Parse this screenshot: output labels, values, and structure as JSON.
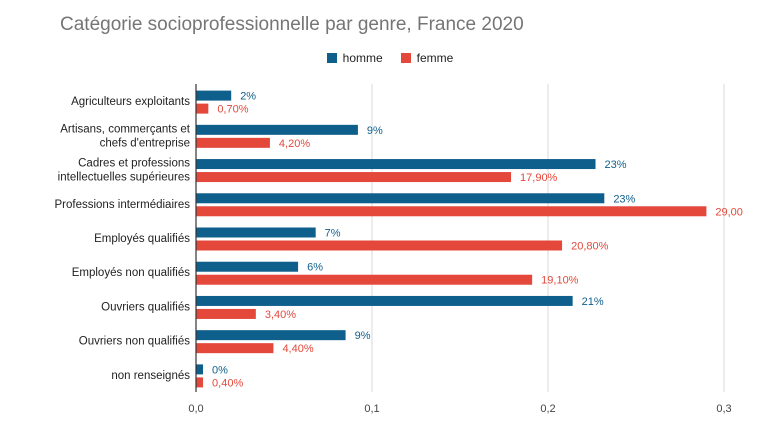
{
  "colors": {
    "homme": "#0f5f8c",
    "femme": "#e3483b",
    "grid": "#d9d9d9",
    "axis": "#333333"
  },
  "chart_data": {
    "type": "bar",
    "orientation": "horizontal",
    "title": "Catégorie socioprofessionnelle par genre, France 2020",
    "xlim": [
      0,
      0.3
    ],
    "xticks": [
      0,
      0.1,
      0.2,
      0.3
    ],
    "xtick_labels": [
      "0,0",
      "0,1",
      "0,2",
      "0,3"
    ],
    "grid": true,
    "legend_position": "top-center",
    "categories": [
      [
        "Agriculteurs exploitants"
      ],
      [
        "Artisans, commerçants et",
        "chefs d'entreprise"
      ],
      [
        "Cadres et professions",
        "intellectuelles supérieures"
      ],
      [
        "Professions intermédiaires"
      ],
      [
        "Employés qualifiés"
      ],
      [
        "Employés non qualifiés"
      ],
      [
        "Ouvriers qualifiés"
      ],
      [
        "Ouvriers non qualifiés"
      ],
      [
        "non renseignés"
      ]
    ],
    "series": [
      {
        "name": "homme",
        "values": [
          0.02,
          0.092,
          0.227,
          0.232,
          0.068,
          0.058,
          0.214,
          0.085,
          0.004
        ],
        "labels": [
          "2%",
          "9%",
          "23%",
          "23%",
          "7%",
          "6%",
          "21%",
          "9%",
          "0%"
        ]
      },
      {
        "name": "femme",
        "values": [
          0.007,
          0.042,
          0.179,
          0.29,
          0.208,
          0.191,
          0.034,
          0.044,
          0.004
        ],
        "labels": [
          "0,70%",
          "4,20%",
          "17,90%",
          "29,00",
          "20,80%",
          "19,10%",
          "3,40%",
          "4,40%",
          "0,40%"
        ]
      }
    ]
  }
}
